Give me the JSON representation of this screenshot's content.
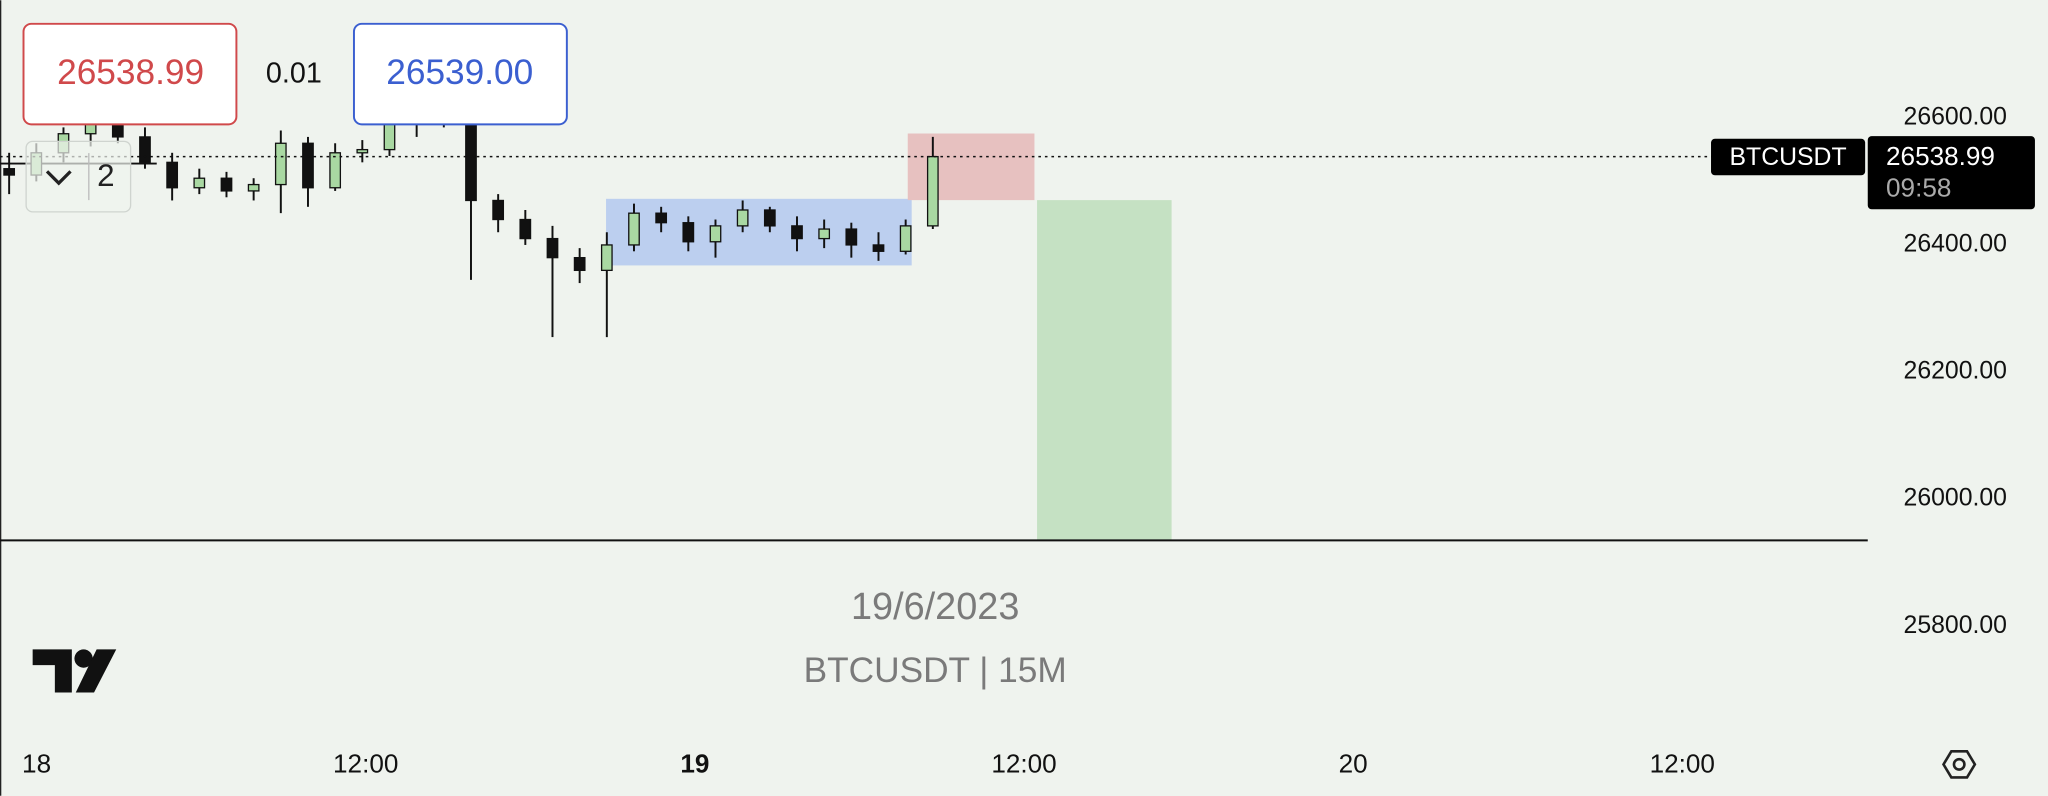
{
  "top_bar": {
    "bid": "26538.99",
    "spread": "0.01",
    "ask": "26539.00"
  },
  "collapse_count": "2",
  "watermark": {
    "date": "19/6/2023",
    "symbol": "BTCUSDT | 15M"
  },
  "price_label": {
    "symbol": "BTCUSDT",
    "price": "26538.99",
    "countdown": "09:58"
  },
  "chart_data": {
    "type": "candlestick",
    "open": [
      26520,
      26510,
      26545,
      26575,
      26590,
      26570,
      26530,
      26490,
      26505,
      26485,
      26495,
      26560,
      26490,
      26545,
      26550,
      26590,
      26595,
      26595,
      26470,
      26440,
      26410,
      26380,
      26360,
      26400,
      26450,
      26435,
      26405,
      26430,
      26455,
      26430,
      26410,
      26425,
      26400,
      26390,
      26430
    ],
    "high": [
      26545,
      26560,
      26585,
      26600,
      26600,
      26585,
      26545,
      26520,
      26515,
      26505,
      26580,
      26570,
      26560,
      26565,
      26600,
      26610,
      26610,
      26600,
      26480,
      26455,
      26430,
      26395,
      26420,
      26465,
      26460,
      26445,
      26440,
      26470,
      26460,
      26445,
      26440,
      26435,
      26420,
      26440,
      26570
    ],
    "low": [
      26480,
      26500,
      26530,
      26555,
      26560,
      26520,
      26470,
      26480,
      26475,
      26470,
      26450,
      26460,
      26485,
      26530,
      26540,
      26570,
      26585,
      26345,
      26420,
      26400,
      26255,
      26340,
      26255,
      26390,
      26420,
      26390,
      26380,
      26420,
      26420,
      26390,
      26395,
      26380,
      26375,
      26385,
      26425
    ],
    "close": [
      26510,
      26545,
      26575,
      26590,
      26570,
      26530,
      26490,
      26505,
      26485,
      26495,
      26560,
      26490,
      26545,
      26550,
      26590,
      26595,
      26600,
      26470,
      26440,
      26410,
      26380,
      26360,
      26400,
      26450,
      26435,
      26405,
      26430,
      26455,
      26430,
      26410,
      26425,
      26400,
      26390,
      26430,
      26538.99
    ],
    "up_color": "#a9d8a2",
    "down_color": "#111111",
    "ylim": [
      25634,
      26785
    ],
    "yticks": [
      {
        "value": 25800,
        "label": "25800.00"
      },
      {
        "value": 26000,
        "label": "26000.00"
      },
      {
        "value": 26200,
        "label": "26200.00"
      },
      {
        "value": 26400,
        "label": "26400.00"
      },
      {
        "value": 26600,
        "label": "26600.00"
      }
    ],
    "x_axis_labels": [
      "18",
      "12:00",
      "19",
      "12:00",
      "20",
      "12:00"
    ]
  }
}
